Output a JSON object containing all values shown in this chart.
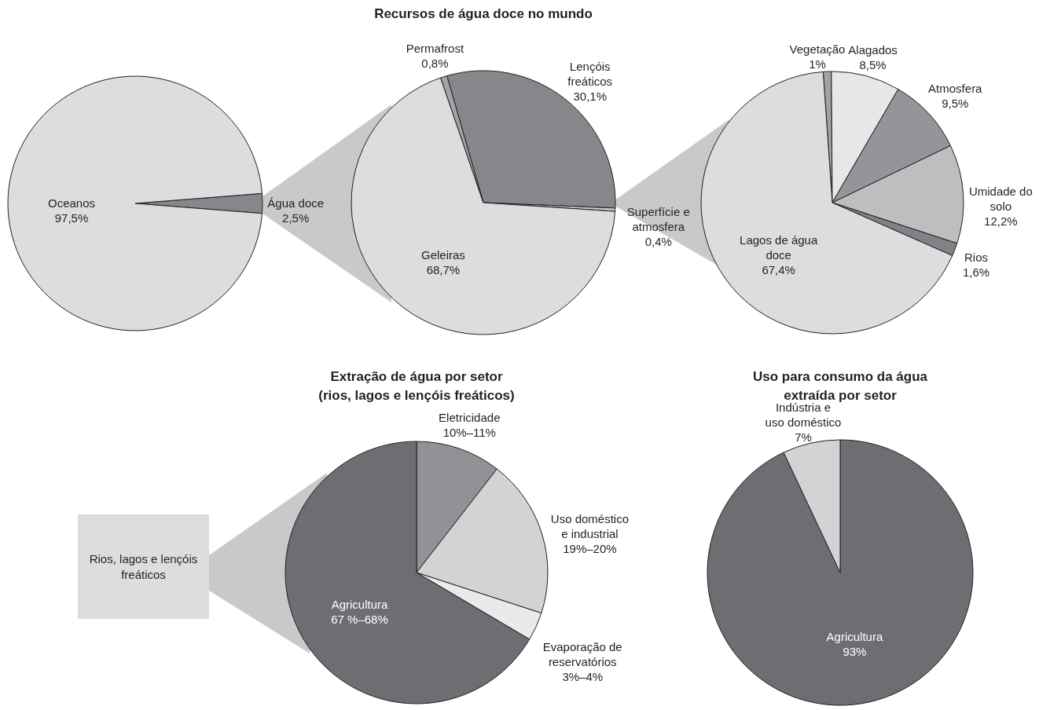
{
  "chart_data": [
    {
      "type": "pie",
      "categories": [
        "Água doce",
        "Oceanos"
      ],
      "values": [
        2.5,
        97.5
      ],
      "colors": [
        "#86878a",
        "#dcdddf"
      ],
      "value_labels": [
        "2,5%",
        "97,5%"
      ]
    },
    {
      "type": "pie",
      "title": "Recursos de água doce no mundo",
      "categories": [
        "Lençóis freáticos",
        "Superfície e atmosfera",
        "Geleiras",
        "Permafrost"
      ],
      "values": [
        30.1,
        0.4,
        68.7,
        0.8
      ],
      "colors": [
        "#86878a",
        "#c4c5c7",
        "#dcdddf",
        "#a2a3a6"
      ],
      "value_labels": [
        "30,1%",
        "0,4%",
        "68,7%",
        "0,8%"
      ]
    },
    {
      "type": "pie",
      "categories": [
        "Vegetação",
        "Alagados",
        "Atmosfera",
        "Umidade do solo",
        "Rios",
        "Lagos de água doce"
      ],
      "values": [
        1,
        8.5,
        9.5,
        12.2,
        1.6,
        67.4
      ],
      "colors": [
        "#a2a3a6",
        "#e6e7e8",
        "#939598",
        "#bcbec0",
        "#808285",
        "#dcdddf"
      ],
      "value_labels": [
        "1%",
        "8,5%",
        "9,5%",
        "12,2%",
        "1,6%",
        "67,4%"
      ]
    },
    {
      "type": "pie",
      "title": "Extração de água por setor",
      "subtitle": "(rios, lagos e lençóis freáticos)",
      "categories": [
        "Eletricidade",
        "Uso doméstico e industrial",
        "Evaporação de reservatórios",
        "Agricultura"
      ],
      "values": [
        10.5,
        19.5,
        3.5,
        66.5
      ],
      "colors": [
        "#919295",
        "#d1d3d4",
        "#e9eaeb",
        "#6d6e71"
      ],
      "value_labels": [
        "10%–11%",
        "19%–20%",
        "3%–4%",
        "67 %–68%"
      ],
      "annotations": [
        "Rios, lagos e lençóis freáticos"
      ]
    },
    {
      "type": "pie",
      "title": "Uso para consumo da água",
      "subtitle": "extraída por setor",
      "categories": [
        "Agricultura",
        "Indústria e uso doméstico"
      ],
      "values": [
        93,
        7
      ],
      "colors": [
        "#6d6e71",
        "#d1d3d4"
      ],
      "value_labels": [
        "93%",
        "7%"
      ]
    }
  ]
}
